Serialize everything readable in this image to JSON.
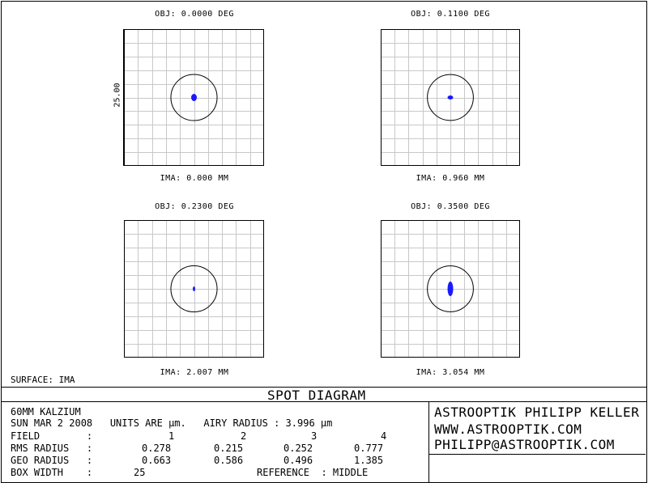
{
  "surface_label": "SURFACE: IMA",
  "plots": [
    {
      "obj": "OBJ: 0.0000 DEG",
      "ima": "IMA: 0.000 MM",
      "spot": {
        "rx": 3.5,
        "ry": 4.5
      }
    },
    {
      "obj": "OBJ: 0.1100 DEG",
      "ima": "IMA: 0.960 MM",
      "spot": {
        "rx": 3.5,
        "ry": 2.5
      }
    },
    {
      "obj": "OBJ: 0.2300 DEG",
      "ima": "IMA: 2.007 MM",
      "spot": {
        "rx": 1.5,
        "ry": 3
      }
    },
    {
      "obj": "OBJ: 0.3500 DEG",
      "ima": "IMA: 3.054 MM",
      "spot": {
        "rx": 3.5,
        "ry": 9
      }
    }
  ],
  "scale_label": "25.00",
  "title": "SPOT DIAGRAM",
  "info": {
    "line1": "60MM KALZIUM",
    "line2": "SUN MAR 2 2008   UNITS ARE µm.   AIRY RADIUS : 3.996 µm",
    "field_label": "FIELD        :",
    "field_values": [
      "1",
      "2",
      "3",
      "4"
    ],
    "rms_label": "RMS RADIUS   :",
    "rms_values": [
      "0.278",
      "0.215",
      "0.252",
      "0.777"
    ],
    "geo_label": "GEO RADIUS   :",
    "geo_values": [
      "0.663",
      "0.586",
      "0.496",
      "1.385"
    ],
    "box_label": "BOX WIDTH    :",
    "box_value": "25",
    "reference": "REFERENCE  : MIDDLE"
  },
  "company": {
    "name": "ASTROOPTIK PHILIPP KELLER",
    "web": "WWW.ASTROOPTIK.COM",
    "email": "PHILIPP@ASTROOPTIK.COM"
  },
  "colors": {
    "spot": "#1a1aff",
    "grid": "#c8c8c8",
    "frame": "#000000"
  }
}
